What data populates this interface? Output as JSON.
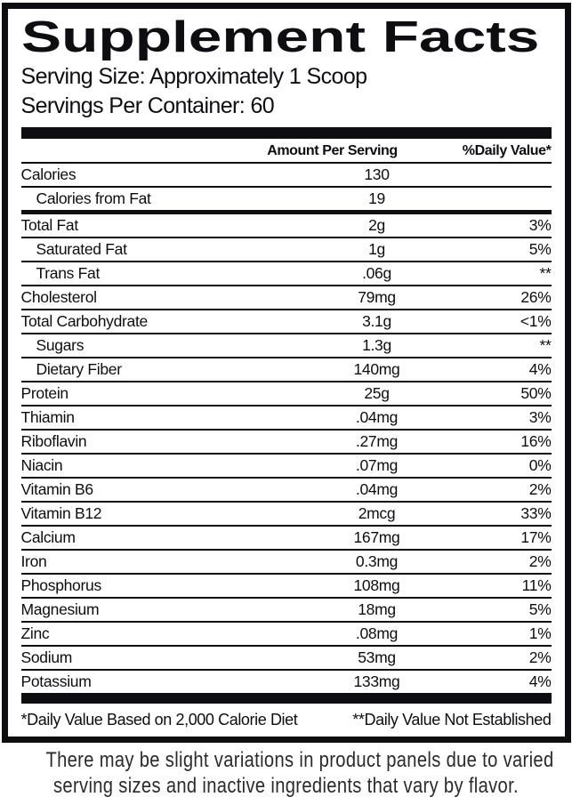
{
  "title": "Supplement Facts",
  "serving": {
    "serving_size": "Serving Size: Approximately 1 Scoop",
    "servings_per_container": "Servings Per Container: 60"
  },
  "table": {
    "headers": {
      "amount": "Amount Per Serving",
      "daily_value": "%Daily Value*"
    },
    "rows": [
      {
        "name": "Calories",
        "amount": "130",
        "dv": "",
        "indent": false,
        "sep": "thin"
      },
      {
        "name": "Calories from Fat",
        "amount": "19",
        "dv": "",
        "indent": true,
        "sep": "thick"
      },
      {
        "name": "Total Fat",
        "amount": "2g",
        "dv": "3%",
        "indent": false,
        "sep": "thin"
      },
      {
        "name": "Saturated Fat",
        "amount": "1g",
        "dv": "5%",
        "indent": true,
        "sep": "thin"
      },
      {
        "name": "Trans Fat",
        "amount": ".06g",
        "dv": "**",
        "indent": true,
        "sep": "thin"
      },
      {
        "name": "Cholesterol",
        "amount": "79mg",
        "dv": "26%",
        "indent": false,
        "sep": "thin"
      },
      {
        "name": "Total Carbohydrate",
        "amount": "3.1g",
        "dv": "<1%",
        "indent": false,
        "sep": "thin"
      },
      {
        "name": "Sugars",
        "amount": "1.3g",
        "dv": "**",
        "indent": true,
        "sep": "thin"
      },
      {
        "name": "Dietary Fiber",
        "amount": "140mg",
        "dv": "4%",
        "indent": true,
        "sep": "thin"
      },
      {
        "name": "Protein",
        "amount": "25g",
        "dv": "50%",
        "indent": false,
        "sep": "thin"
      },
      {
        "name": "Thiamin",
        "amount": ".04mg",
        "dv": "3%",
        "indent": false,
        "sep": "thin"
      },
      {
        "name": "Riboflavin",
        "amount": ".27mg",
        "dv": "16%",
        "indent": false,
        "sep": "thin"
      },
      {
        "name": "Niacin",
        "amount": ".07mg",
        "dv": "0%",
        "indent": false,
        "sep": "thin"
      },
      {
        "name": "Vitamin B6",
        "amount": ".04mg",
        "dv": "2%",
        "indent": false,
        "sep": "thin"
      },
      {
        "name": "Vitamin B12",
        "amount": "2mcg",
        "dv": "33%",
        "indent": false,
        "sep": "thin"
      },
      {
        "name": "Calcium",
        "amount": "167mg",
        "dv": "17%",
        "indent": false,
        "sep": "thin"
      },
      {
        "name": "Iron",
        "amount": "0.3mg",
        "dv": "2%",
        "indent": false,
        "sep": "thin"
      },
      {
        "name": "Phosphorus",
        "amount": "108mg",
        "dv": "11%",
        "indent": false,
        "sep": "thin"
      },
      {
        "name": "Magnesium",
        "amount": "18mg",
        "dv": "5%",
        "indent": false,
        "sep": "thin"
      },
      {
        "name": "Zinc",
        "amount": ".08mg",
        "dv": "1%",
        "indent": false,
        "sep": "thin"
      },
      {
        "name": "Sodium",
        "amount": "53mg",
        "dv": "2%",
        "indent": false,
        "sep": "thin"
      },
      {
        "name": "Potassium",
        "amount": "133mg",
        "dv": "4%",
        "indent": false,
        "sep": "none"
      }
    ]
  },
  "footnotes": {
    "daily_value": "*Daily Value Based on 2,000 Calorie Diet",
    "not_established": "**Daily Value Not Established"
  },
  "disclaimer": {
    "line1": "There may be slight variations in product panels due to varied",
    "line2": "serving sizes and inactive ingredients that vary by flavor."
  },
  "colors": {
    "ink": "#0d0d12",
    "disclaimer_text": "#2b2b2b"
  }
}
